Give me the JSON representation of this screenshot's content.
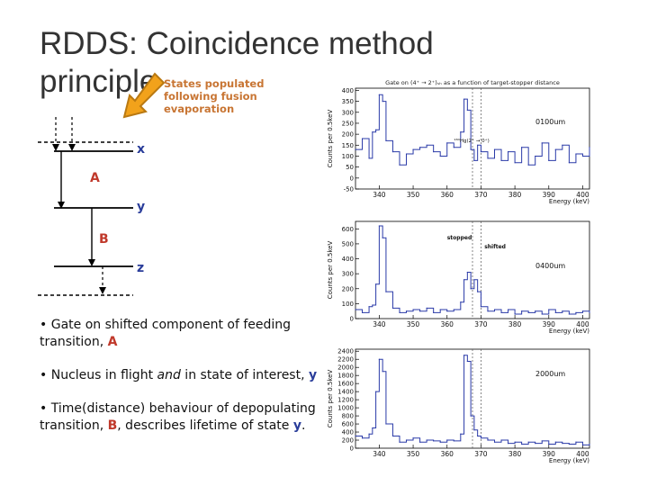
{
  "slide": {
    "title_line1": "RDDS: Coincidence method",
    "title_line2": "principle",
    "annotation": [
      "States populated",
      "following fusion",
      "evaporation"
    ],
    "level_labels": {
      "x": "x",
      "A": "A",
      "y": "y",
      "B": "B",
      "z": "z"
    },
    "bullets": [
      {
        "text": "Gate on shifted component of feeding transition, ",
        "highlight": "A"
      },
      {
        "pre": "Nucleus in flight ",
        "em": "and",
        "post": " in state of interest, ",
        "highlight": "y"
      },
      {
        "pre": " Time(distance) behaviour of depopulating transition, ",
        "highlight1": "B",
        "mid": ", describes lifetime of state ",
        "highlight2": "y",
        "end": "."
      }
    ],
    "colors": {
      "red": "#c0392b",
      "blue": "#2a3d9a",
      "orange": "#c87533",
      "arrow": "#f2a21b"
    }
  },
  "chart_data": [
    {
      "type": "line",
      "title": "Gate on (4⁺ → 2⁺)ₛₕ as a function of target-stopper distance",
      "xlabel": "Energy (keV)",
      "ylabel": "Counts per 0.5keV",
      "annotation": "0100um",
      "inset_label": "¹⁸⁴Hg(2⁺ → 0⁺)",
      "xlim": [
        333,
        402
      ],
      "ylim": [
        -50,
        410
      ],
      "xticks": [
        340,
        350,
        360,
        370,
        380,
        390,
        400
      ],
      "yticks": [
        -50,
        0,
        50,
        100,
        150,
        200,
        250,
        300,
        350,
        400
      ],
      "x": [
        333,
        335,
        337,
        338,
        339,
        340,
        341,
        342,
        344,
        346,
        348,
        350,
        352,
        354,
        356,
        358,
        360,
        362,
        364,
        365,
        366,
        367,
        368,
        369,
        370,
        372,
        374,
        376,
        378,
        380,
        382,
        384,
        386,
        388,
        390,
        392,
        394,
        396,
        398,
        400,
        402
      ],
      "y": [
        130,
        180,
        90,
        210,
        220,
        380,
        350,
        170,
        120,
        60,
        110,
        130,
        140,
        150,
        120,
        100,
        160,
        140,
        210,
        360,
        310,
        130,
        80,
        150,
        120,
        90,
        130,
        80,
        120,
        70,
        140,
        60,
        100,
        160,
        80,
        130,
        150,
        70,
        110,
        100,
        140
      ]
    },
    {
      "type": "line",
      "title": "",
      "xlabel": "Energy (keV)",
      "ylabel": "Counts per 0.5keV",
      "annotation": "0400um",
      "labels": [
        "stopped",
        "shifted"
      ],
      "xlim": [
        333,
        402
      ],
      "ylim": [
        0,
        650
      ],
      "xticks": [
        340,
        350,
        360,
        370,
        380,
        390,
        400
      ],
      "yticks": [
        0,
        100,
        200,
        300,
        400,
        500,
        600
      ],
      "x": [
        333,
        335,
        337,
        338,
        339,
        340,
        341,
        342,
        344,
        346,
        348,
        350,
        352,
        354,
        356,
        358,
        360,
        362,
        364,
        365,
        366,
        367,
        368,
        369,
        370,
        372,
        374,
        376,
        378,
        380,
        382,
        384,
        386,
        388,
        390,
        392,
        394,
        396,
        398,
        400,
        402
      ],
      "y": [
        60,
        40,
        80,
        90,
        230,
        620,
        540,
        180,
        70,
        40,
        50,
        60,
        50,
        70,
        40,
        60,
        50,
        60,
        110,
        260,
        310,
        200,
        260,
        180,
        80,
        50,
        60,
        40,
        60,
        30,
        50,
        40,
        50,
        30,
        60,
        40,
        50,
        30,
        40,
        50,
        40
      ]
    },
    {
      "type": "line",
      "title": "",
      "xlabel": "Energy (keV)",
      "ylabel": "Counts per 0.5keV",
      "annotation": "2000um",
      "xlim": [
        333,
        402
      ],
      "ylim": [
        0,
        2450
      ],
      "xticks": [
        340,
        350,
        360,
        370,
        380,
        390,
        400
      ],
      "yticks": [
        0,
        200,
        400,
        600,
        800,
        1000,
        1200,
        1400,
        1600,
        1800,
        2000,
        2200,
        2400
      ],
      "x": [
        333,
        335,
        337,
        338,
        339,
        340,
        341,
        342,
        344,
        346,
        348,
        350,
        352,
        354,
        356,
        358,
        360,
        362,
        364,
        365,
        366,
        367,
        368,
        369,
        370,
        372,
        374,
        376,
        378,
        380,
        382,
        384,
        386,
        388,
        390,
        392,
        394,
        396,
        398,
        400,
        402
      ],
      "y": [
        300,
        250,
        350,
        500,
        1400,
        2200,
        1900,
        600,
        300,
        150,
        200,
        250,
        150,
        200,
        180,
        150,
        200,
        180,
        350,
        2300,
        2150,
        800,
        450,
        300,
        250,
        200,
        150,
        200,
        120,
        150,
        100,
        150,
        120,
        180,
        100,
        150,
        120,
        100,
        150,
        80,
        100
      ]
    }
  ]
}
